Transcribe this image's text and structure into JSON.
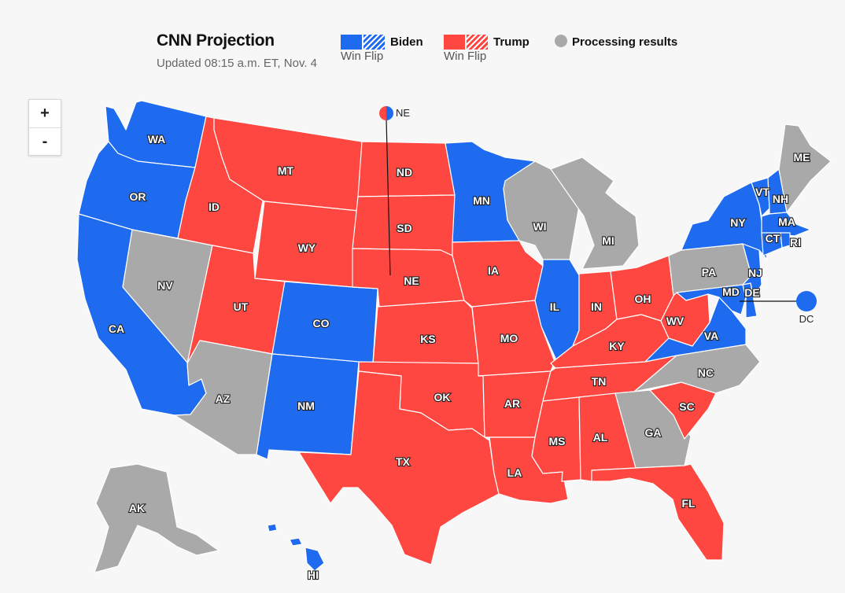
{
  "header": {
    "title": "CNN Projection",
    "updated": "Updated 08:15 a.m. ET, Nov. 4"
  },
  "legend": {
    "biden": {
      "name": "Biden",
      "sub": "Win Flip",
      "color": "#1e6bf0"
    },
    "trump": {
      "name": "Trump",
      "sub": "Win Flip",
      "color": "#ff4742"
    },
    "processing": {
      "label": "Processing results",
      "color": "#a9a9a9"
    }
  },
  "zoom": {
    "in_label": "+",
    "out_label": "-"
  },
  "colors": {
    "biden": "#1e6bf0",
    "trump": "#ff4742",
    "processing": "#a9a9a9",
    "border": "#ffffff"
  },
  "states": {
    "WA": "biden",
    "OR": "biden",
    "CA": "biden",
    "NV": "processing",
    "ID": "trump",
    "MT": "trump",
    "WY": "trump",
    "UT": "trump",
    "AZ": "processing",
    "CO": "biden",
    "NM": "biden",
    "ND": "trump",
    "SD": "trump",
    "NE": "trump",
    "KS": "trump",
    "OK": "trump",
    "TX": "trump",
    "MN": "biden",
    "IA": "trump",
    "MO": "trump",
    "AR": "trump",
    "LA": "trump",
    "WI": "processing",
    "IL": "biden",
    "MI": "processing",
    "IN": "trump",
    "OH": "trump",
    "KY": "trump",
    "TN": "trump",
    "MS": "trump",
    "AL": "trump",
    "GA": "processing",
    "FL": "trump",
    "SC": "trump",
    "NC": "processing",
    "VA": "biden",
    "WV": "trump",
    "PA": "processing",
    "NY": "biden",
    "VT": "biden",
    "NH": "biden",
    "ME": "processing",
    "MA": "biden",
    "CT": "biden",
    "RI": "biden",
    "NJ": "biden",
    "DE": "biden",
    "MD": "biden",
    "AK": "processing",
    "HI": "biden"
  },
  "callouts": {
    "NE": {
      "label": "NE"
    },
    "DC": {
      "label": "DC"
    }
  }
}
